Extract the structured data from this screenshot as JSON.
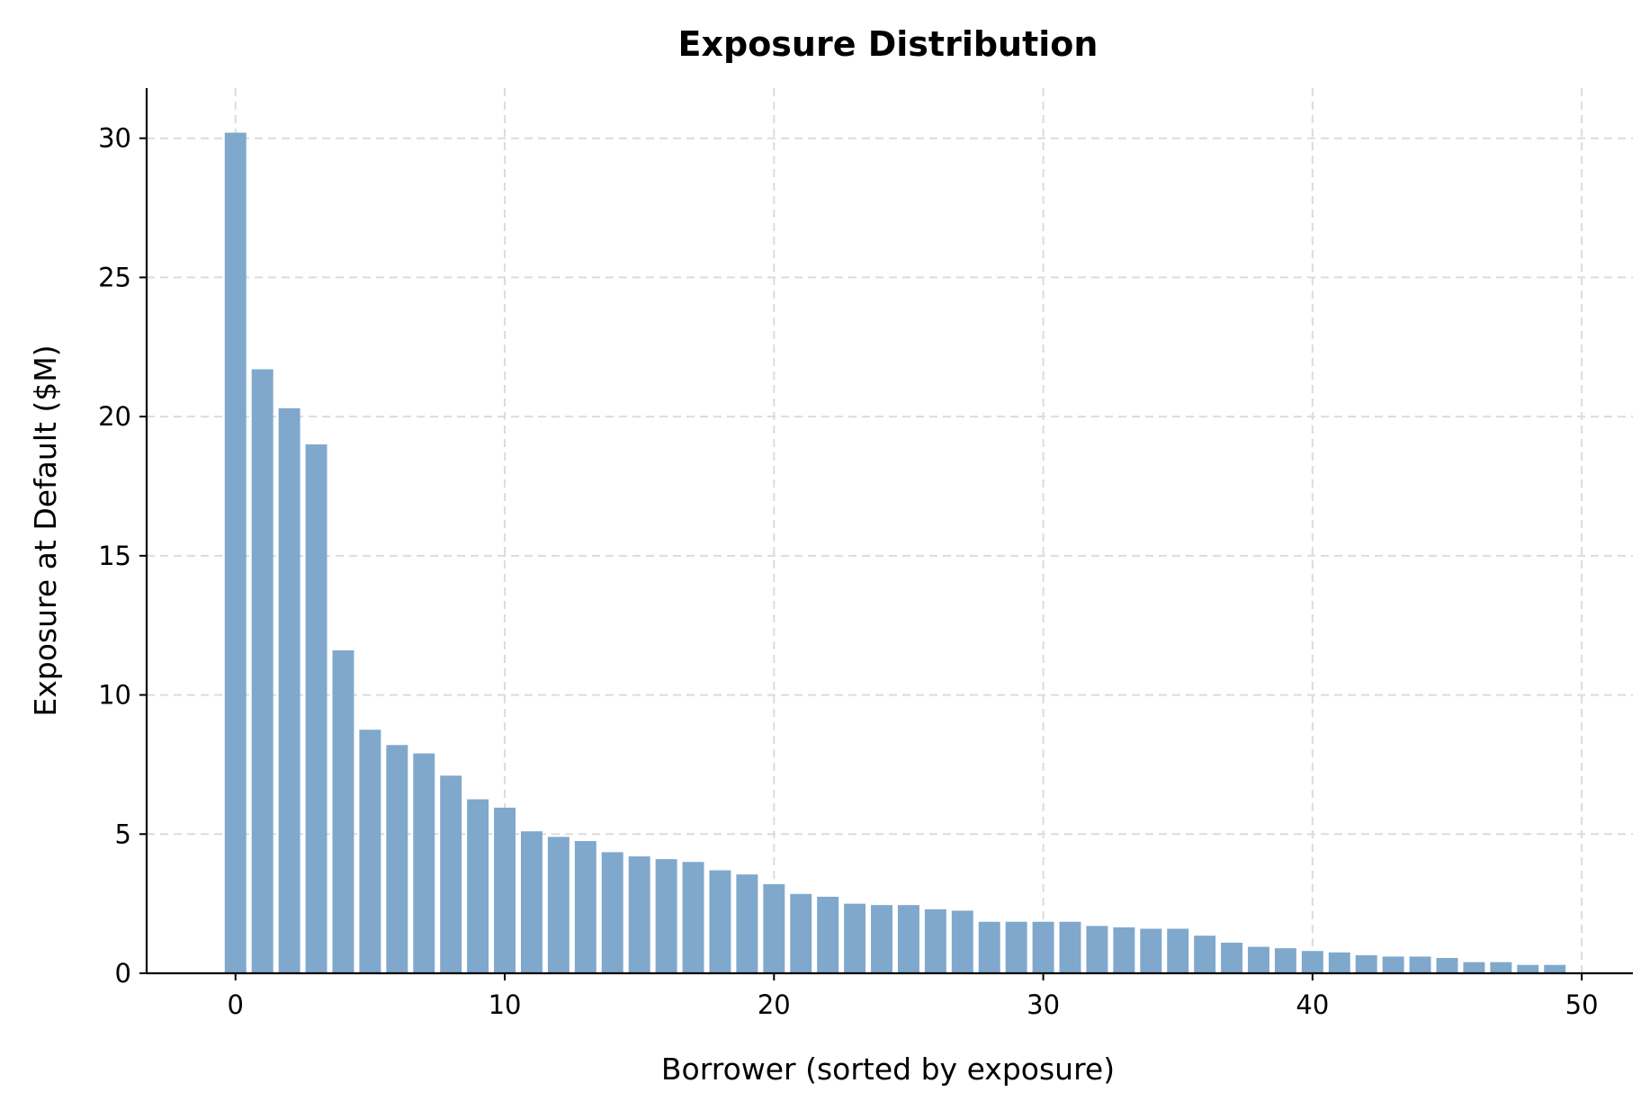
{
  "chart_data": {
    "type": "bar",
    "title": "Exposure Distribution",
    "xlabel": "Borrower (sorted by exposure)",
    "ylabel": "Exposure at Default ($M)",
    "x": [
      0,
      1,
      2,
      3,
      4,
      5,
      6,
      7,
      8,
      9,
      10,
      11,
      12,
      13,
      14,
      15,
      16,
      17,
      18,
      19,
      20,
      21,
      22,
      23,
      24,
      25,
      26,
      27,
      28,
      29,
      30,
      31,
      32,
      33,
      34,
      35,
      36,
      37,
      38,
      39,
      40,
      41,
      42,
      43,
      44,
      45,
      46,
      47,
      48,
      49
    ],
    "values": [
      30.2,
      21.7,
      20.3,
      19.0,
      11.6,
      8.75,
      8.2,
      7.9,
      7.1,
      6.25,
      5.95,
      5.1,
      4.9,
      4.75,
      4.35,
      4.2,
      4.1,
      4.0,
      3.7,
      3.55,
      3.2,
      2.85,
      2.75,
      2.5,
      2.45,
      2.45,
      2.3,
      2.25,
      1.85,
      1.85,
      1.85,
      1.85,
      1.7,
      1.65,
      1.6,
      1.6,
      1.35,
      1.1,
      0.95,
      0.9,
      0.8,
      0.75,
      0.65,
      0.6,
      0.6,
      0.55,
      0.4,
      0.4,
      0.3,
      0.3
    ],
    "xlim": [
      -3.3,
      51.9
    ],
    "ylim": [
      0,
      31.8
    ],
    "xticks": [
      0,
      10,
      20,
      30,
      40,
      50
    ],
    "yticks": [
      0,
      5,
      10,
      15,
      20,
      25,
      30
    ],
    "grid": true,
    "bar_color": "#7fa8cc"
  }
}
